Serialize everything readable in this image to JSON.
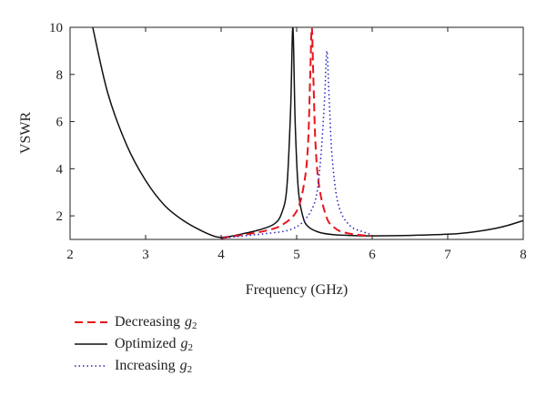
{
  "chart_data": {
    "type": "line",
    "title": "",
    "xlabel": "Frequency (GHz)",
    "ylabel": "VSWR",
    "xlim": [
      2,
      8
    ],
    "ylim": [
      1,
      10
    ],
    "xticks": [
      2,
      3,
      4,
      5,
      6,
      7,
      8
    ],
    "yticks": [
      2,
      4,
      6,
      8,
      10
    ],
    "grid": false,
    "legend_position": "bottom-left, below plot",
    "series": [
      {
        "name": "Decreasing",
        "name_symbol": "g",
        "name_subscript": "2",
        "color": "#e8141c",
        "dash": "dashed",
        "x": [
          4.0,
          4.2,
          4.4,
          4.6,
          4.8,
          5.0,
          5.1,
          5.15,
          5.18,
          5.2,
          5.22,
          5.25,
          5.3,
          5.4,
          5.5,
          5.6,
          5.8,
          6.0
        ],
        "y": [
          1.05,
          1.15,
          1.25,
          1.38,
          1.6,
          2.2,
          3.4,
          5.0,
          8.0,
          10.0,
          8.0,
          5.0,
          3.2,
          1.9,
          1.5,
          1.32,
          1.2,
          1.15
        ]
      },
      {
        "name": "Optimized",
        "name_symbol": "g",
        "name_subscript": "2",
        "color": "#111111",
        "dash": "solid",
        "x": [
          2.3,
          2.5,
          2.75,
          3.0,
          3.25,
          3.5,
          3.75,
          3.95,
          4.1,
          4.3,
          4.5,
          4.7,
          4.8,
          4.87,
          4.92,
          4.95,
          4.98,
          5.02,
          5.08,
          5.15,
          5.3,
          5.5,
          5.8,
          6.0,
          6.5,
          7.0,
          7.3,
          7.6,
          7.8,
          8.0
        ],
        "y": [
          10.0,
          7.2,
          5.0,
          3.5,
          2.45,
          1.8,
          1.35,
          1.1,
          1.12,
          1.25,
          1.4,
          1.65,
          2.1,
          3.2,
          6.5,
          10.0,
          6.0,
          3.2,
          2.0,
          1.55,
          1.3,
          1.2,
          1.16,
          1.15,
          1.17,
          1.22,
          1.3,
          1.45,
          1.6,
          1.8
        ]
      },
      {
        "name": "Increasing",
        "name_symbol": "g",
        "name_subscript": "2",
        "color": "#2222bb",
        "dash": "dotted",
        "x": [
          4.0,
          4.3,
          4.6,
          4.9,
          5.1,
          5.25,
          5.32,
          5.37,
          5.4,
          5.43,
          5.47,
          5.55,
          5.7,
          5.9,
          6.0
        ],
        "y": [
          1.05,
          1.15,
          1.25,
          1.4,
          1.8,
          2.7,
          4.5,
          7.0,
          9.0,
          7.0,
          4.5,
          2.5,
          1.6,
          1.3,
          1.2
        ]
      }
    ]
  }
}
